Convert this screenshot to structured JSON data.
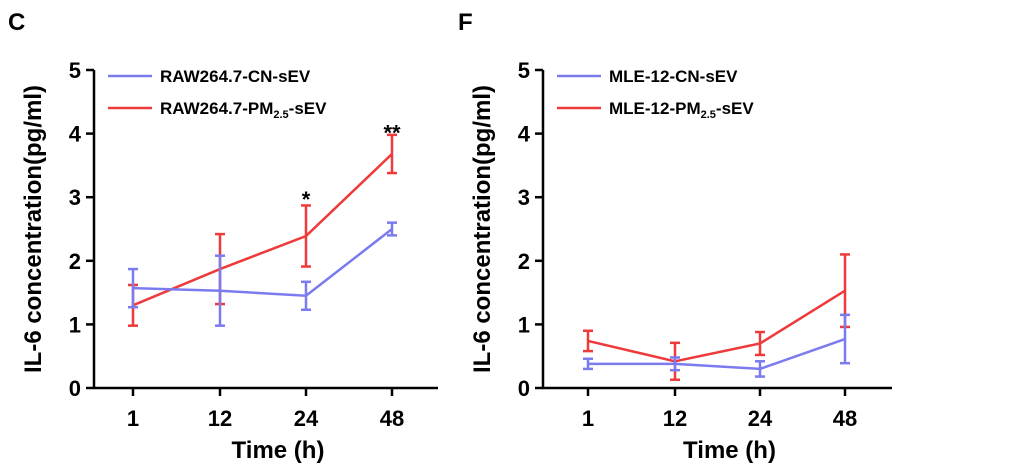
{
  "chart_data": [
    {
      "panel": "C",
      "type": "line",
      "xlabel": "Time (h)",
      "ylabel": "IL-6 concentration(pg/ml)",
      "categories": [
        "1",
        "12",
        "24",
        "48"
      ],
      "ylim": [
        0,
        5
      ],
      "yticks": [
        "0",
        "1",
        "2",
        "3",
        "4",
        "5"
      ],
      "legend_position": "top-left",
      "series": [
        {
          "name": "RAW264.7-CN-sEV",
          "name_main": "RAW264.7-CN-sEV",
          "name_sub": "",
          "name_tail": "",
          "color": "#7b7bf0",
          "values": [
            1.57,
            1.53,
            1.45,
            2.5
          ],
          "errors": [
            0.3,
            0.55,
            0.22,
            0.1
          ]
        },
        {
          "name": "RAW264.7-PM2.5-sEV",
          "name_main": "RAW264.7-PM",
          "name_sub": "2.5",
          "name_tail": "-sEV",
          "color": "#ee3a3a",
          "values": [
            1.3,
            1.87,
            2.39,
            3.68
          ],
          "errors": [
            0.32,
            0.55,
            0.48,
            0.3
          ]
        }
      ],
      "annotations": [
        {
          "category": "24",
          "text": "*",
          "value": 3.0
        },
        {
          "category": "48",
          "text": "**",
          "value": 4.05
        }
      ]
    },
    {
      "panel": "F",
      "type": "line",
      "xlabel": "Time (h)",
      "ylabel": "IL-6 concentration(pg/ml)",
      "categories": [
        "1",
        "12",
        "24",
        "48"
      ],
      "ylim": [
        0,
        5
      ],
      "yticks": [
        "0",
        "1",
        "2",
        "3",
        "4",
        "5"
      ],
      "legend_position": "top-left",
      "series": [
        {
          "name": "MLE-12-CN-sEV",
          "name_main": "MLE-12-CN-sEV",
          "name_sub": "",
          "name_tail": "",
          "color": "#7b7bf0",
          "values": [
            0.38,
            0.38,
            0.3,
            0.77
          ],
          "errors": [
            0.08,
            0.1,
            0.12,
            0.38
          ]
        },
        {
          "name": "MLE-12-PM2.5-sEV",
          "name_main": "MLE-12-PM",
          "name_sub": "2.5",
          "name_tail": "-sEV",
          "color": "#ee3a3a",
          "values": [
            0.74,
            0.42,
            0.7,
            1.53
          ],
          "errors": [
            0.16,
            0.29,
            0.18,
            0.57
          ]
        }
      ],
      "annotations": []
    }
  ]
}
